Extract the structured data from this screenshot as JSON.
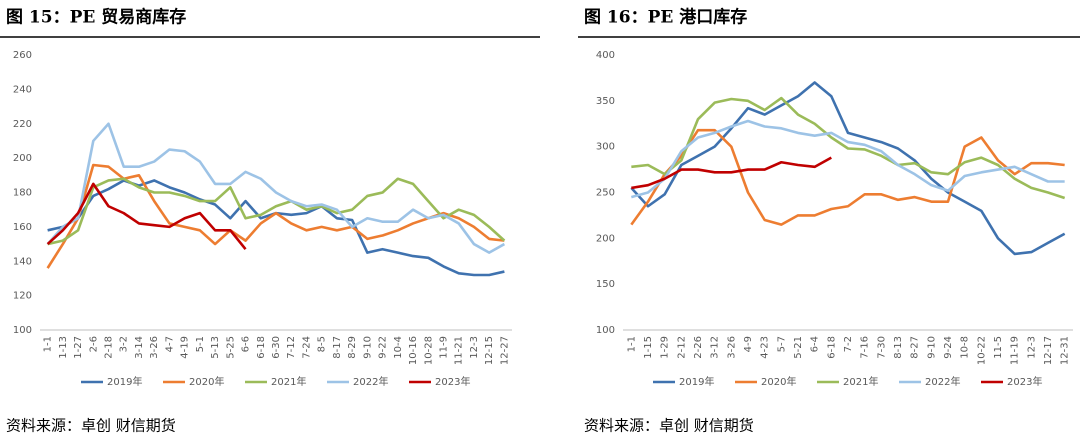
{
  "chart_data": [
    {
      "type": "line",
      "title": "图 15：PE 贸易商库存",
      "source": "资料来源：卓创 财信期货",
      "categories": [
        "1-1",
        "1-13",
        "1-27",
        "2-6",
        "2-18",
        "3-2",
        "3-14",
        "3-26",
        "4-7",
        "4-19",
        "5-1",
        "5-13",
        "5-25",
        "6-6",
        "6-18",
        "6-30",
        "7-12",
        "7-24",
        "8-5",
        "8-17",
        "8-29",
        "9-10",
        "9-22",
        "10-4",
        "10-16",
        "10-28",
        "11-9",
        "11-21",
        "12-3",
        "12-15",
        "12-27"
      ],
      "ylim": [
        100,
        260
      ],
      "yticks": [
        100,
        120,
        140,
        160,
        180,
        200,
        220,
        240,
        260
      ],
      "grid": false,
      "series": [
        {
          "name": "2019年",
          "color": "#3f72af",
          "values": [
            158,
            160,
            165,
            178,
            182,
            187,
            184,
            187,
            183,
            180,
            176,
            173,
            165,
            175,
            165,
            168,
            167,
            168,
            172,
            165,
            164,
            145,
            147,
            145,
            143,
            142,
            137,
            133,
            132,
            132,
            134
          ]
        },
        {
          "name": "2020年",
          "color": "#ed7d31",
          "values": [
            136,
            150,
            165,
            196,
            195,
            188,
            190,
            175,
            162,
            160,
            158,
            150,
            158,
            152,
            162,
            168,
            162,
            158,
            160,
            158,
            160,
            153,
            155,
            158,
            162,
            165,
            168,
            165,
            160,
            153,
            152
          ]
        },
        {
          "name": "2021年",
          "color": "#9bbb59",
          "values": [
            150,
            152,
            158,
            183,
            187,
            188,
            183,
            180,
            180,
            178,
            175,
            175,
            183,
            165,
            167,
            172,
            175,
            170,
            172,
            168,
            170,
            178,
            180,
            188,
            185,
            175,
            165,
            170,
            167,
            160,
            152
          ]
        },
        {
          "name": "2022年",
          "color": "#9dc3e6",
          "values": [
            150,
            160,
            165,
            210,
            220,
            195,
            195,
            198,
            205,
            204,
            198,
            185,
            185,
            192,
            188,
            180,
            175,
            172,
            173,
            170,
            160,
            165,
            163,
            163,
            170,
            165,
            167,
            162,
            150,
            145,
            150
          ]
        },
        {
          "name": "2023年",
          "color": "#c00000",
          "values": [
            150,
            158,
            168,
            185,
            172,
            168,
            162,
            161,
            160,
            165,
            168,
            158,
            158,
            147,
            null,
            null,
            null,
            null,
            null,
            null,
            null,
            null,
            null,
            null,
            null,
            null,
            null,
            null,
            null,
            null,
            null
          ]
        }
      ]
    },
    {
      "type": "line",
      "title": "图 16：PE 港口库存",
      "source": "资料来源：卓创 财信期货",
      "categories": [
        "1-1",
        "1-15",
        "1-29",
        "2-12",
        "2-26",
        "3-12",
        "3-26",
        "4-9",
        "4-23",
        "5-7",
        "5-21",
        "6-4",
        "6-18",
        "7-2",
        "7-16",
        "7-30",
        "8-13",
        "8-27",
        "9-10",
        "9-24",
        "10-8",
        "10-22",
        "11-5",
        "11-19",
        "12-3",
        "12-17",
        "12-31"
      ],
      "ylim": [
        100,
        400
      ],
      "yticks": [
        100,
        150,
        200,
        250,
        300,
        350,
        400
      ],
      "grid": false,
      "series": [
        {
          "name": "2019年",
          "color": "#3f72af",
          "values": [
            255,
            235,
            248,
            280,
            290,
            300,
            320,
            342,
            335,
            345,
            355,
            370,
            355,
            315,
            310,
            305,
            298,
            285,
            265,
            250,
            240,
            230,
            200,
            183,
            185,
            195,
            205
          ]
        },
        {
          "name": "2020年",
          "color": "#ed7d31",
          "values": [
            215,
            240,
            270,
            290,
            318,
            318,
            300,
            250,
            220,
            215,
            225,
            225,
            232,
            235,
            248,
            248,
            242,
            245,
            240,
            240,
            300,
            310,
            285,
            270,
            282,
            282,
            280
          ]
        },
        {
          "name": "2021年",
          "color": "#9bbb59",
          "values": [
            278,
            280,
            270,
            285,
            330,
            348,
            352,
            350,
            340,
            353,
            335,
            325,
            310,
            298,
            297,
            290,
            280,
            282,
            272,
            270,
            283,
            288,
            280,
            265,
            255,
            250,
            244
          ]
        },
        {
          "name": "2022年",
          "color": "#9dc3e6",
          "values": [
            245,
            250,
            265,
            295,
            310,
            315,
            322,
            328,
            322,
            320,
            315,
            312,
            315,
            305,
            302,
            295,
            280,
            270,
            258,
            252,
            268,
            272,
            275,
            278,
            270,
            262,
            262
          ]
        },
        {
          "name": "2023年",
          "color": "#c00000",
          "values": [
            255,
            258,
            265,
            275,
            275,
            272,
            272,
            275,
            275,
            283,
            280,
            278,
            288,
            null,
            null,
            null,
            null,
            null,
            null,
            null,
            null,
            null,
            null,
            null,
            null,
            null,
            null
          ]
        }
      ]
    }
  ]
}
